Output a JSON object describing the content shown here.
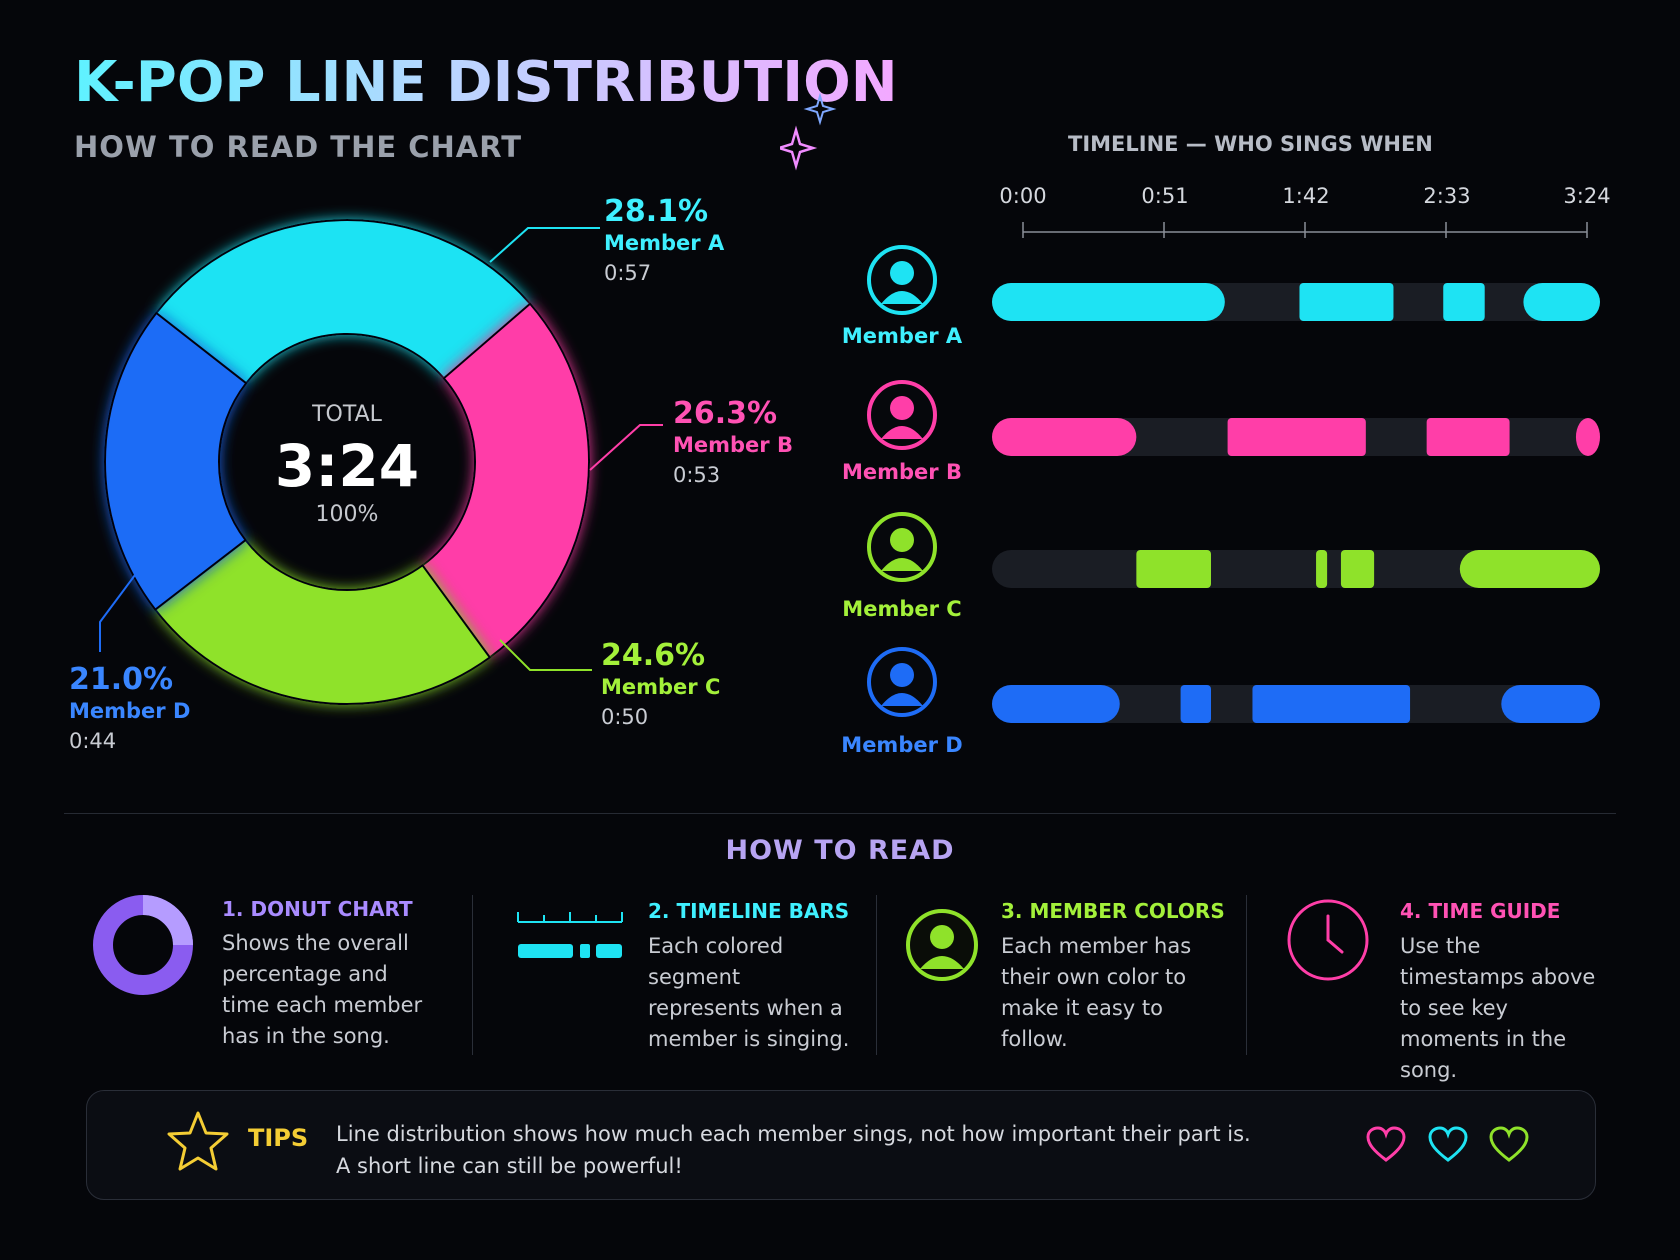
{
  "header": {
    "title": "K-POP LINE DISTRIBUTION",
    "subtitle": "HOW TO READ THE CHART"
  },
  "donut": {
    "center_label": "TOTAL",
    "center_value": "3:24",
    "center_pct": "100%"
  },
  "timeline": {
    "title": "TIMELINE — WHO SINGS WHEN",
    "ticks": [
      "0:00",
      "0:51",
      "1:42",
      "2:33",
      "3:24"
    ]
  },
  "chart_data": [
    {
      "type": "pie",
      "categories": [
        "Member A",
        "Member B",
        "Member C",
        "Member D"
      ],
      "values": [
        28.1,
        26.3,
        24.6,
        21.0
      ],
      "value_labels": [
        "28.1%",
        "26.3%",
        "24.6%",
        "21.0%"
      ],
      "times": [
        "0:57",
        "0:53",
        "0:50",
        "0:44"
      ],
      "colors": [
        "#1ee3f3",
        "#ff3ea8",
        "#8fe22a",
        "#1e6cf6"
      ],
      "total": "3:24"
    },
    {
      "type": "bar",
      "title": "TIMELINE — WHO SINGS WHEN",
      "x_ticks": [
        "0:00",
        "0:51",
        "1:42",
        "2:33",
        "3:24"
      ],
      "x_range_seconds": [
        0,
        204
      ],
      "series": [
        {
          "name": "Member A",
          "color": "#1ee3f3",
          "segments": [
            [
              0,
              73
            ],
            [
              100,
              134
            ],
            [
              152,
              167
            ],
            [
              181,
              204
            ]
          ]
        },
        {
          "name": "Member B",
          "color": "#ff3ea8",
          "segments": [
            [
              0,
              41
            ],
            [
              74,
              124
            ],
            [
              146,
              176
            ],
            [
              200,
              204
            ]
          ]
        },
        {
          "name": "Member C",
          "color": "#8fe22a",
          "segments": [
            [
              41,
              68
            ],
            [
              106,
              110
            ],
            [
              115,
              127
            ],
            [
              158,
              204
            ]
          ]
        },
        {
          "name": "Member D",
          "color": "#1e6cf6",
          "segments": [
            [
              0,
              35
            ],
            [
              57,
              68
            ],
            [
              83,
              140
            ],
            [
              173,
              204
            ]
          ]
        }
      ]
    }
  ],
  "how_to_read": {
    "title": "HOW TO READ",
    "items": [
      {
        "head": "1. DONUT CHART",
        "body": "Shows the overall percentage and time each member has in the song.",
        "color": "#8a5cf0",
        "icon": "donut-icon"
      },
      {
        "head": "2. TIMELINE BARS",
        "body": "Each colored segment represents when a member is singing.",
        "color": "#1ee3f3",
        "icon": "timeline-bars-icon"
      },
      {
        "head": "3. MEMBER COLORS",
        "body": "Each member has their own color to make it easy to follow.",
        "color": "#8fe22a",
        "icon": "person-icon"
      },
      {
        "head": "4. TIME GUIDE",
        "body": "Use the timestamps above to see key moments in the song.",
        "color": "#ff3ea8",
        "icon": "clock-icon"
      }
    ]
  },
  "tips": {
    "label": "TIPS",
    "line1": "Line distribution shows how much each member sings, not how important their part is.",
    "line2": "A short line can still be powerful!"
  }
}
